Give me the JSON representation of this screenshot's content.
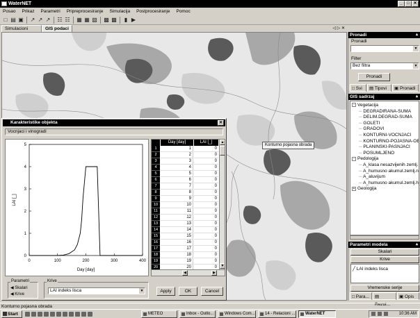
{
  "app": {
    "title": "WaterNET"
  },
  "menu": [
    "Posao",
    "Prikaz",
    "Parametri",
    "Pripreprocesiranje",
    "Simulacija",
    "Postprocesiranje",
    "Pomoc"
  ],
  "tabs": [
    {
      "label": "Simulacioni model"
    },
    {
      "label": "GIS podaci"
    }
  ],
  "tab_nav": "◁ ▷ ✕",
  "map": {
    "tooltip": "Konturno pojasna obrada"
  },
  "right_panel": {
    "pronadi_header": "Pronadi",
    "pronadi_label": "Pronadi",
    "filter_label": "Filter",
    "filter_value": "Bez filtra",
    "pronadi_button": "Pronadi",
    "view_tabs": [
      "Svi",
      "Tipovi",
      "Pronadi"
    ],
    "gis_header": "GIS sadrzaj",
    "tree": [
      {
        "label": "Vegetacija",
        "level": 0,
        "expand": "-"
      },
      {
        "label": "DEGRADIRANA-SUMA",
        "level": 1
      },
      {
        "label": "DELIM.DEGRAD-SUMA",
        "level": 1
      },
      {
        "label": "GOLETI",
        "level": 1
      },
      {
        "label": "GRADOVI",
        "level": 1
      },
      {
        "label": "KONTURNI-VOCNJACI",
        "level": 1
      },
      {
        "label": "KONTURNO-POJASNA-OBR",
        "level": 1
      },
      {
        "label": "PLANINSKI-PASNJACI",
        "level": 1
      },
      {
        "label": "POSUMLJENO",
        "level": 1
      },
      {
        "label": "Pedologija",
        "level": 0,
        "expand": "-"
      },
      {
        "label": "A_klasa nesazvijenih zemlj. koluv",
        "level": 1
      },
      {
        "label": "A_humusno akumul.zemlj.nisle d",
        "level": 1
      },
      {
        "label": "A_aluvijum",
        "level": 1
      },
      {
        "label": "A_humusno akumul.zemlj.humu",
        "level": 1
      },
      {
        "label": "Geologija",
        "level": 0,
        "expand": "+"
      }
    ],
    "params_header": "Parametri modela",
    "params_tab1": "Skalari",
    "params_tab2": "Krive",
    "params_item": "LAI indeks lisca",
    "vremenske": "Vremenske serije",
    "bottom_tabs": [
      "Para...",
      "Rezul...",
      "Opis"
    ]
  },
  "dialog": {
    "title": "Karakteristike objekta",
    "subtitle": "Vocnjaci i vinogradi",
    "table_headers": [
      "Day [day]",
      "LAI [_]"
    ],
    "rows": [
      {
        "n": "1",
        "day": "1",
        "lai": "0"
      },
      {
        "n": "2",
        "day": "2",
        "lai": "0"
      },
      {
        "n": "3",
        "day": "3",
        "lai": "0"
      },
      {
        "n": "4",
        "day": "4",
        "lai": "0"
      },
      {
        "n": "5",
        "day": "5",
        "lai": "0"
      },
      {
        "n": "6",
        "day": "6",
        "lai": "0"
      },
      {
        "n": "7",
        "day": "7",
        "lai": "0"
      },
      {
        "n": "8",
        "day": "8",
        "lai": "0"
      },
      {
        "n": "9",
        "day": "9",
        "lai": "0"
      },
      {
        "n": "10",
        "day": "10",
        "lai": "0"
      },
      {
        "n": "11",
        "day": "11",
        "lai": "0"
      },
      {
        "n": "12",
        "day": "12",
        "lai": "0"
      },
      {
        "n": "13",
        "day": "13",
        "lai": "0"
      },
      {
        "n": "14",
        "day": "14",
        "lai": "0"
      },
      {
        "n": "15",
        "day": "15",
        "lai": "0"
      },
      {
        "n": "16",
        "day": "16",
        "lai": "0"
      },
      {
        "n": "17",
        "day": "17",
        "lai": "0"
      },
      {
        "n": "18",
        "day": "18",
        "lai": "0"
      },
      {
        "n": "19",
        "day": "19",
        "lai": "0"
      },
      {
        "n": "20",
        "day": "20",
        "lai": "0"
      }
    ],
    "params_group": "Parametri",
    "params_skalari": "Skalari",
    "params_krive": "Krive",
    "krive_group": "Krive",
    "krive_select": "LAI indeks lisca",
    "apply": "Apply",
    "ok": "OK",
    "cancel": "Cancel"
  },
  "chart_data": {
    "type": "line",
    "title": "",
    "xlabel": "Day [day]",
    "ylabel": "LAI [_]",
    "xlim": [
      0,
      400
    ],
    "ylim": [
      0,
      5
    ],
    "xticks": [
      "0",
      "100",
      "200",
      "300",
      "400"
    ],
    "yticks": [
      "0",
      "1",
      "2",
      "3",
      "4",
      "5"
    ],
    "x": [
      0,
      100,
      120,
      140,
      160,
      170,
      180,
      185,
      190,
      200,
      215,
      230,
      240,
      250,
      260,
      270,
      400
    ],
    "y": [
      0,
      0,
      0.02,
      0.08,
      0.25,
      0.5,
      1.0,
      1.6,
      2.6,
      4,
      4,
      4,
      4,
      0,
      0,
      0,
      0
    ]
  },
  "status": {
    "text": "Konturno pojasna obrada"
  },
  "taskbar": {
    "start": "Start",
    "tasks": [
      "METEO",
      "Inbox - Outlo...",
      "Windows Com...",
      "14 - Relacioni ...",
      "WaterNET"
    ],
    "clock": "10:36 AM"
  }
}
